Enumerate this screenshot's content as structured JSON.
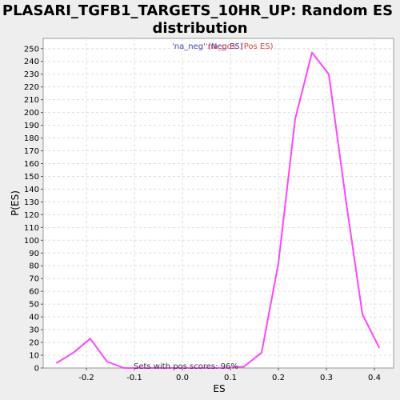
{
  "chart_data": {
    "type": "line",
    "title": "PLASARI_TGFB1_TARGETS_10HR_UP: Random ES distribution",
    "title_lines": [
      "PLASARI_TGFB1_TARGETS_10HR_UP: Random ES",
      "distribution"
    ],
    "xlabel": "ES",
    "ylabel": "P(ES)",
    "xlim": [
      -0.29,
      0.44
    ],
    "ylim": [
      0,
      258
    ],
    "x_ticks": [
      -0.2,
      -0.1,
      0.0,
      0.1,
      0.2,
      0.3,
      0.4
    ],
    "x_tick_labels": [
      "-0.2",
      "-0.1",
      "0.0",
      "0.1",
      "0.2",
      "0.3",
      "0.4"
    ],
    "y_ticks": [
      0,
      10,
      20,
      30,
      40,
      50,
      60,
      70,
      80,
      90,
      100,
      110,
      120,
      130,
      140,
      150,
      160,
      170,
      180,
      190,
      200,
      210,
      220,
      230,
      240,
      250
    ],
    "grid": true,
    "legend": {
      "placement": "top-center",
      "items": [
        {
          "label": "'na_neg' (Neg ES)",
          "color": "#4040c0"
        },
        {
          "label": "'na_pos' (Pos ES)",
          "color": "#e04040"
        }
      ]
    },
    "annotation": "Sets with pos scores: 96%",
    "series": [
      {
        "color": "#ff44ff",
        "x": [
          -0.262,
          -0.227,
          -0.192,
          -0.157,
          -0.122,
          -0.087,
          -0.052,
          -0.017,
          0.018,
          0.053,
          0.088,
          0.128,
          0.165,
          0.2,
          0.235,
          0.27,
          0.305,
          0.34,
          0.375,
          0.41
        ],
        "y": [
          4,
          12,
          23,
          5,
          0,
          0,
          0,
          0,
          0,
          0,
          0,
          1,
          12,
          82,
          195,
          247,
          230,
          133,
          42,
          16
        ]
      }
    ]
  }
}
